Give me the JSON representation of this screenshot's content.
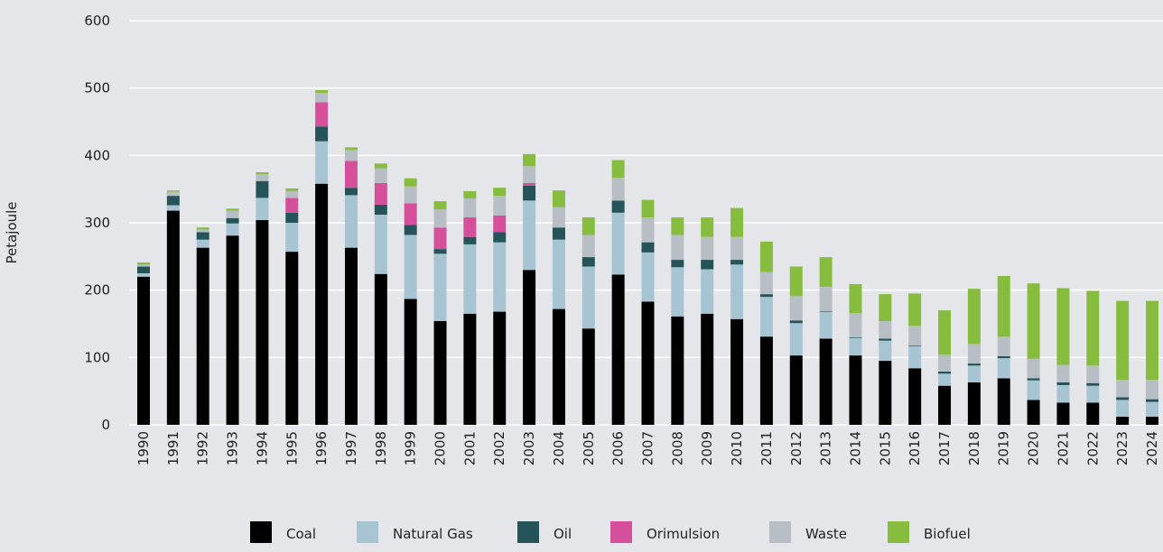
{
  "chart_data": {
    "type": "stacked_bar",
    "y_label": "Petajoule",
    "categories": [
      "1990",
      "1991",
      "1992",
      "1993",
      "1994",
      "1995",
      "1996",
      "1997",
      "1998",
      "1999",
      "2000",
      "2001",
      "2002",
      "2003",
      "2004",
      "2005",
      "2006",
      "2007",
      "2008",
      "2009",
      "2010",
      "2011",
      "2012",
      "2013",
      "2014",
      "2015",
      "2016",
      "2017",
      "2018",
      "2019",
      "2020",
      "2021",
      "2022",
      "2023",
      "2024"
    ],
    "series": [
      {
        "name": "Coal",
        "color": "#000000",
        "values": [
          220,
          318,
          263,
          281,
          304,
          257,
          358,
          263,
          224,
          187,
          154,
          165,
          168,
          230,
          172,
          143,
          223,
          183,
          161,
          165,
          157,
          131,
          103,
          128,
          103,
          95,
          84,
          58,
          63,
          69,
          37,
          33,
          33,
          12,
          12
        ]
      },
      {
        "name": "Natural Gas",
        "color": "#a7c4d3",
        "values": [
          5,
          8,
          12,
          18,
          33,
          43,
          63,
          78,
          88,
          95,
          100,
          103,
          103,
          103,
          103,
          92,
          92,
          73,
          73,
          66,
          81,
          59,
          48,
          40,
          26,
          30,
          33,
          18,
          25,
          30,
          29,
          26,
          25,
          25,
          22
        ]
      },
      {
        "name": "Oil",
        "color": "#245457",
        "values": [
          10,
          14,
          11,
          8,
          25,
          15,
          22,
          11,
          15,
          15,
          7,
          11,
          15,
          22,
          18,
          14,
          18,
          15,
          11,
          14,
          7,
          4,
          4,
          1,
          1,
          3,
          1,
          3,
          3,
          3,
          3,
          4,
          4,
          4,
          4
        ]
      },
      {
        "name": "Orimulsion",
        "color": "#d54f9b",
        "values": [
          0,
          0,
          0,
          0,
          0,
          22,
          36,
          40,
          32,
          32,
          32,
          29,
          25,
          4,
          0,
          0,
          0,
          0,
          0,
          0,
          0,
          0,
          0,
          0,
          0,
          0,
          0,
          0,
          0,
          0,
          0,
          0,
          0,
          0,
          0
        ]
      },
      {
        "name": "Waste",
        "color": "#b8bfc4",
        "values": [
          3,
          6,
          4,
          11,
          10,
          10,
          14,
          16,
          22,
          25,
          27,
          28,
          29,
          25,
          30,
          33,
          34,
          37,
          37,
          34,
          34,
          33,
          36,
          36,
          36,
          26,
          29,
          25,
          29,
          29,
          29,
          26,
          26,
          26,
          29
        ]
      },
      {
        "name": "Biofuel",
        "color": "#86bd3e",
        "values": [
          3,
          2,
          3,
          3,
          3,
          4,
          4,
          4,
          7,
          12,
          12,
          11,
          12,
          18,
          25,
          26,
          26,
          26,
          26,
          29,
          43,
          45,
          44,
          44,
          43,
          40,
          48,
          66,
          82,
          90,
          112,
          114,
          111,
          117,
          117
        ]
      }
    ],
    "ylim": [
      0,
      600
    ],
    "yticks": [
      0,
      100,
      200,
      300,
      400,
      500,
      600
    ],
    "grid": true
  }
}
